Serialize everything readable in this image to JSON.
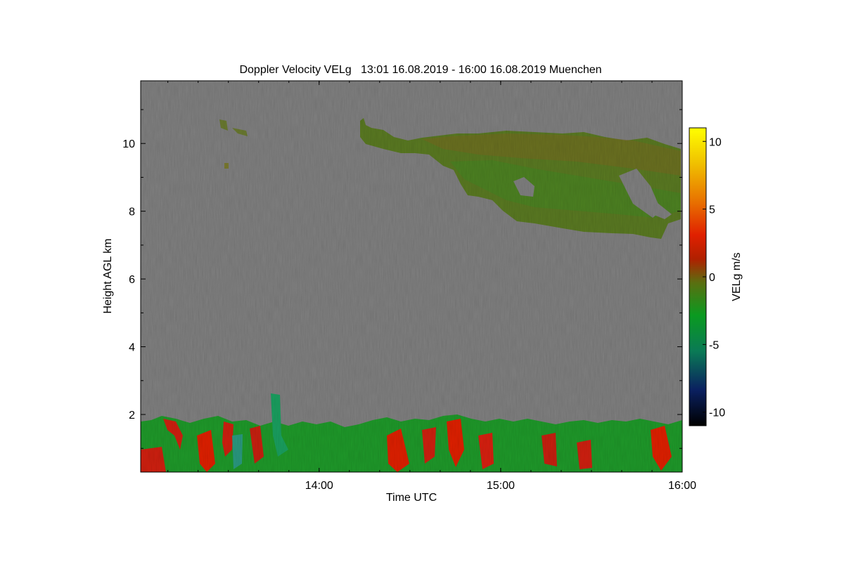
{
  "chart_data": {
    "type": "heatmap",
    "title": "Doppler Velocity VELg   13:01 16.08.2019 - 16:00 16.08.2019 Muenchen",
    "xlabel": "Time UTC",
    "ylabel": "Height AGL km",
    "x_ticks": [
      "14:00",
      "15:00",
      "16:00"
    ],
    "x_tick_hours": [
      14,
      15,
      16
    ],
    "xlim": [
      13.017,
      16.0
    ],
    "y_ticks": [
      2,
      4,
      6,
      8,
      10
    ],
    "ylim": [
      0.3,
      11.85
    ],
    "background_color": "#808080",
    "colorbar": {
      "label": "VELg m/s",
      "ticks": [
        10,
        5,
        0,
        -5,
        -10
      ],
      "range": [
        -11,
        11
      ],
      "colors": [
        "#000000",
        "#0a2060",
        "#0a7a55",
        "#0a9a20",
        "#5a6f10",
        "#b02000",
        "#e02000",
        "#e87000",
        "#f0c000",
        "#ffff00"
      ]
    },
    "features": [
      {
        "name": "cirrus layer",
        "time_range": [
          14.22,
          16.0
        ],
        "height_range": [
          7.3,
          10.8
        ],
        "velocity_approx": -1
      },
      {
        "name": "boundary layer",
        "time_range": [
          13.017,
          16.0
        ],
        "height_range": [
          0.3,
          2.0
        ],
        "velocity_range": [
          -3,
          3
        ]
      }
    ]
  }
}
